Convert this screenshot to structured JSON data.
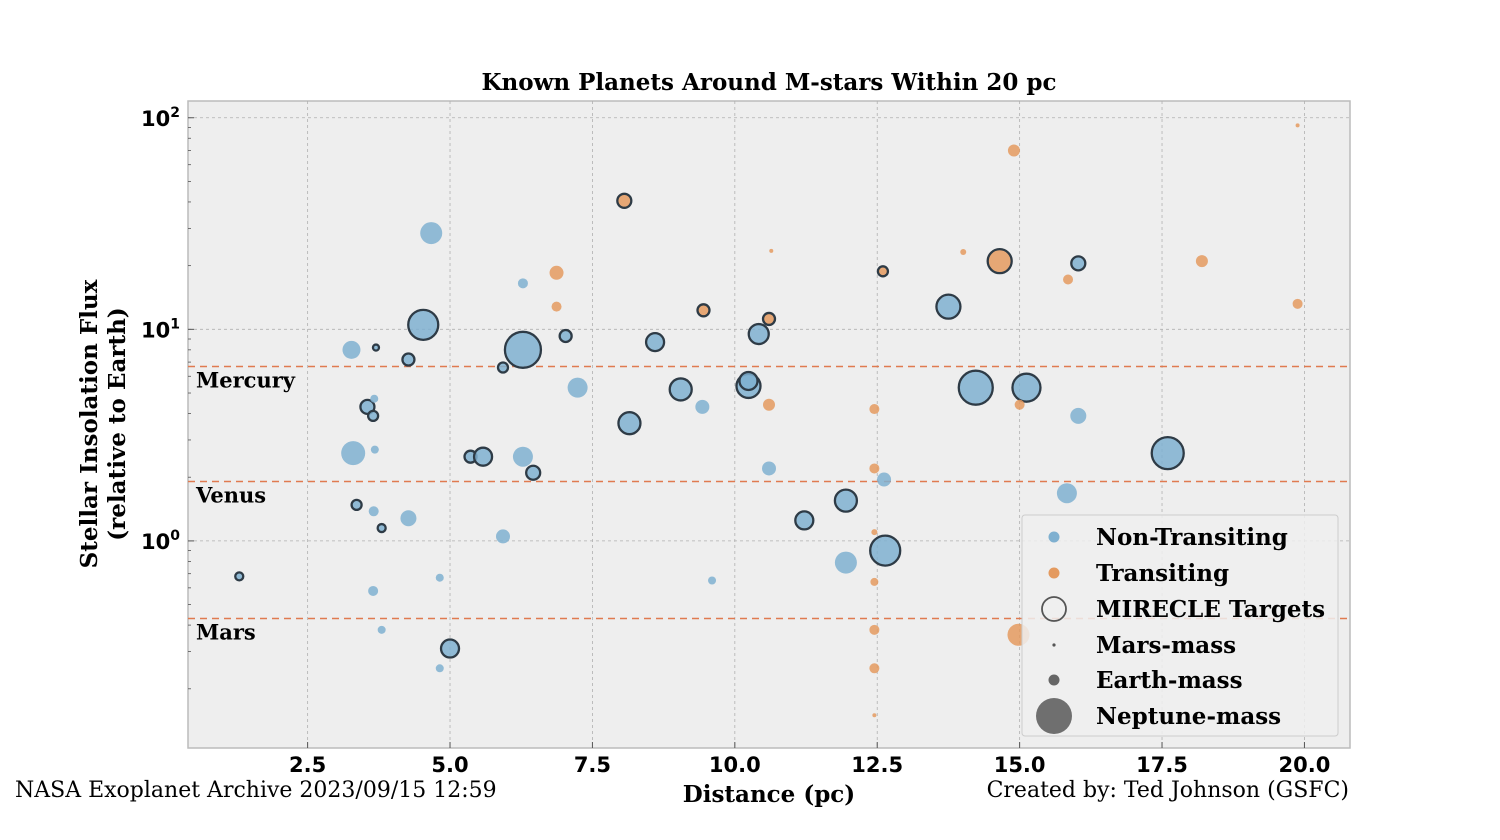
{
  "chart_data": {
    "type": "scatter",
    "title": "Known Planets Around M-stars Within 20 pc",
    "xlabel": "Distance (pc)",
    "ylabel": [
      "Stellar Insolation Flux",
      "(relative to Earth)"
    ],
    "xlim": [
      0.4,
      20.8
    ],
    "ylim": [
      0.105,
      120
    ],
    "y_scale": "log",
    "x_ticks": [
      2.5,
      5.0,
      7.5,
      10.0,
      12.5,
      15.0,
      17.5,
      20.0
    ],
    "x_tick_labels": [
      "2.5",
      "5.0",
      "7.5",
      "10.0",
      "12.5",
      "15.0",
      "17.5",
      "20.0"
    ],
    "y_ticks": [
      {
        "value": 100,
        "base": "10",
        "exp": "2"
      },
      {
        "value": 10,
        "base": "10",
        "exp": "1"
      },
      {
        "value": 1,
        "base": "10",
        "exp": "0"
      }
    ],
    "grid": true,
    "legend_placement": "lower-right",
    "colors": {
      "non_transiting": "#7fb0d0",
      "transiting": "#e49a5f",
      "target_edge": "#2e3b46",
      "reference_line": "#e07a50",
      "plot_background": "#eeeeee"
    },
    "reference_lines": [
      {
        "label": "Mercury",
        "value": 6.67
      },
      {
        "label": "Venus",
        "value": 1.91
      },
      {
        "label": "Mars",
        "value": 0.43
      }
    ],
    "legend": [
      {
        "label": "Non-Transiting",
        "marker": "non-transiting"
      },
      {
        "label": "Transiting",
        "marker": "transiting"
      },
      {
        "label": "MIRECLE Targets",
        "marker": "target"
      },
      {
        "label": "Mars-mass",
        "marker": "mars-mass"
      },
      {
        "label": "Earth-mass",
        "marker": "earth-mass"
      },
      {
        "label": "Neptune-mass",
        "marker": "neptune-mass"
      }
    ],
    "series": [
      {
        "name": "Non-Transiting",
        "points": [
          {
            "x": 1.3,
            "y": 0.68,
            "s": 4,
            "t": 1
          },
          {
            "x": 3.27,
            "y": 8.0,
            "s": 9,
            "t": 0
          },
          {
            "x": 3.3,
            "y": 2.6,
            "s": 12,
            "t": 0
          },
          {
            "x": 3.36,
            "y": 1.48,
            "s": 5,
            "t": 1
          },
          {
            "x": 3.55,
            "y": 4.3,
            "s": 7,
            "t": 1
          },
          {
            "x": 3.65,
            "y": 3.9,
            "s": 5,
            "t": 1
          },
          {
            "x": 3.67,
            "y": 4.7,
            "s": 4,
            "t": 0
          },
          {
            "x": 3.68,
            "y": 2.7,
            "s": 4,
            "t": 0
          },
          {
            "x": 3.66,
            "y": 1.38,
            "s": 5,
            "t": 0
          },
          {
            "x": 3.65,
            "y": 0.58,
            "s": 5,
            "t": 0
          },
          {
            "x": 3.7,
            "y": 8.2,
            "s": 3,
            "t": 1
          },
          {
            "x": 3.8,
            "y": 1.15,
            "s": 4,
            "t": 1
          },
          {
            "x": 3.8,
            "y": 0.38,
            "s": 4,
            "t": 0
          },
          {
            "x": 4.27,
            "y": 7.2,
            "s": 6,
            "t": 1
          },
          {
            "x": 4.27,
            "y": 1.28,
            "s": 8,
            "t": 0
          },
          {
            "x": 4.53,
            "y": 10.5,
            "s": 15,
            "t": 1
          },
          {
            "x": 4.67,
            "y": 28.5,
            "s": 11,
            "t": 0
          },
          {
            "x": 4.82,
            "y": 0.67,
            "s": 4,
            "t": 0
          },
          {
            "x": 4.82,
            "y": 0.25,
            "s": 4,
            "t": 0
          },
          {
            "x": 5.0,
            "y": 0.31,
            "s": 9,
            "t": 1
          },
          {
            "x": 5.36,
            "y": 2.5,
            "s": 6,
            "t": 1
          },
          {
            "x": 5.58,
            "y": 2.5,
            "s": 9,
            "t": 1
          },
          {
            "x": 5.93,
            "y": 6.6,
            "s": 5,
            "t": 1
          },
          {
            "x": 5.93,
            "y": 1.05,
            "s": 7,
            "t": 0
          },
          {
            "x": 6.28,
            "y": 16.5,
            "s": 5,
            "t": 0
          },
          {
            "x": 6.28,
            "y": 8.0,
            "s": 18,
            "t": 1
          },
          {
            "x": 6.28,
            "y": 2.5,
            "s": 10,
            "t": 0
          },
          {
            "x": 6.46,
            "y": 2.1,
            "s": 7,
            "t": 1
          },
          {
            "x": 7.03,
            "y": 9.3,
            "s": 6,
            "t": 1
          },
          {
            "x": 7.24,
            "y": 5.3,
            "s": 10,
            "t": 0
          },
          {
            "x": 8.15,
            "y": 3.6,
            "s": 11,
            "t": 1
          },
          {
            "x": 8.6,
            "y": 8.7,
            "s": 9,
            "t": 1
          },
          {
            "x": 9.05,
            "y": 5.2,
            "s": 11,
            "t": 1
          },
          {
            "x": 9.43,
            "y": 4.3,
            "s": 7,
            "t": 0
          },
          {
            "x": 9.6,
            "y": 0.65,
            "s": 4,
            "t": 0
          },
          {
            "x": 10.24,
            "y": 5.4,
            "s": 12,
            "t": 1
          },
          {
            "x": 10.24,
            "y": 5.7,
            "s": 9,
            "t": 1
          },
          {
            "x": 10.42,
            "y": 9.5,
            "s": 10,
            "t": 1
          },
          {
            "x": 10.6,
            "y": 2.2,
            "s": 7,
            "t": 0
          },
          {
            "x": 11.22,
            "y": 1.25,
            "s": 9,
            "t": 1
          },
          {
            "x": 11.95,
            "y": 1.55,
            "s": 11,
            "t": 1
          },
          {
            "x": 11.95,
            "y": 0.79,
            "s": 11,
            "t": 0
          },
          {
            "x": 12.62,
            "y": 1.95,
            "s": 7,
            "t": 0
          },
          {
            "x": 12.64,
            "y": 0.9,
            "s": 15,
            "t": 1
          },
          {
            "x": 13.75,
            "y": 12.8,
            "s": 12,
            "t": 1
          },
          {
            "x": 14.23,
            "y": 5.3,
            "s": 17,
            "t": 1
          },
          {
            "x": 15.12,
            "y": 5.3,
            "s": 14,
            "t": 1
          },
          {
            "x": 15.83,
            "y": 1.68,
            "s": 10,
            "t": 0
          },
          {
            "x": 16.03,
            "y": 3.9,
            "s": 8,
            "t": 0
          },
          {
            "x": 16.03,
            "y": 20.5,
            "s": 7,
            "t": 1
          },
          {
            "x": 17.6,
            "y": 2.6,
            "s": 16,
            "t": 1
          }
        ]
      },
      {
        "name": "Transiting",
        "points": [
          {
            "x": 6.87,
            "y": 18.5,
            "s": 7,
            "t": 0
          },
          {
            "x": 6.87,
            "y": 12.8,
            "s": 5,
            "t": 0
          },
          {
            "x": 8.06,
            "y": 40.5,
            "s": 7,
            "t": 1
          },
          {
            "x": 9.45,
            "y": 12.3,
            "s": 6,
            "t": 1
          },
          {
            "x": 10.6,
            "y": 11.2,
            "s": 6,
            "t": 1
          },
          {
            "x": 10.6,
            "y": 4.4,
            "s": 6,
            "t": 0
          },
          {
            "x": 10.64,
            "y": 23.5,
            "s": 2,
            "t": 0
          },
          {
            "x": 12.45,
            "y": 4.2,
            "s": 5,
            "t": 0
          },
          {
            "x": 12.45,
            "y": 2.2,
            "s": 5,
            "t": 0
          },
          {
            "x": 12.45,
            "y": 1.1,
            "s": 3,
            "t": 0
          },
          {
            "x": 12.45,
            "y": 0.64,
            "s": 4,
            "t": 0
          },
          {
            "x": 12.45,
            "y": 0.38,
            "s": 5,
            "t": 0
          },
          {
            "x": 12.45,
            "y": 0.25,
            "s": 5,
            "t": 0
          },
          {
            "x": 12.45,
            "y": 0.15,
            "s": 2,
            "t": 0
          },
          {
            "x": 12.6,
            "y": 18.8,
            "s": 5,
            "t": 1
          },
          {
            "x": 14.01,
            "y": 23.2,
            "s": 3,
            "t": 0
          },
          {
            "x": 14.65,
            "y": 21.0,
            "s": 12,
            "t": 1
          },
          {
            "x": 14.9,
            "y": 70.0,
            "s": 6,
            "t": 0
          },
          {
            "x": 14.98,
            "y": 0.36,
            "s": 11,
            "t": 0
          },
          {
            "x": 15.0,
            "y": 4.4,
            "s": 5,
            "t": 0
          },
          {
            "x": 15.85,
            "y": 17.2,
            "s": 5,
            "t": 0
          },
          {
            "x": 18.2,
            "y": 21.0,
            "s": 6,
            "t": 0
          },
          {
            "x": 19.88,
            "y": 92.0,
            "s": 2,
            "t": 0
          },
          {
            "x": 19.88,
            "y": 13.2,
            "s": 5,
            "t": 0
          }
        ]
      }
    ]
  },
  "footer": {
    "source": "NASA Exoplanet Archive  2023/09/15 12:59",
    "credit": "Created by: Ted Johnson (GSFC)"
  }
}
